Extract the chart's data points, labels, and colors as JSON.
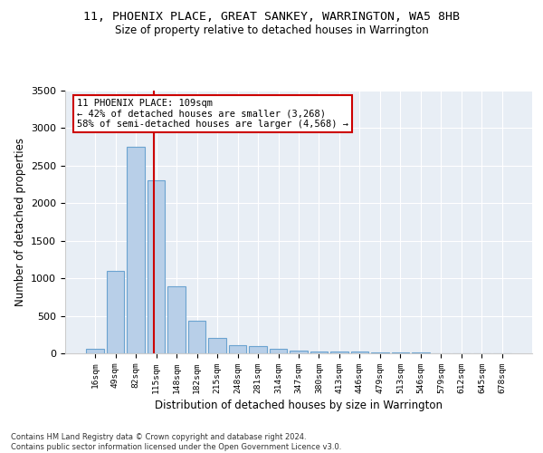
{
  "title": "11, PHOENIX PLACE, GREAT SANKEY, WARRINGTON, WA5 8HB",
  "subtitle": "Size of property relative to detached houses in Warrington",
  "xlabel": "Distribution of detached houses by size in Warrington",
  "ylabel": "Number of detached properties",
  "categories": [
    "16sqm",
    "49sqm",
    "82sqm",
    "115sqm",
    "148sqm",
    "182sqm",
    "215sqm",
    "248sqm",
    "281sqm",
    "314sqm",
    "347sqm",
    "380sqm",
    "413sqm",
    "446sqm",
    "479sqm",
    "513sqm",
    "546sqm",
    "579sqm",
    "612sqm",
    "645sqm",
    "678sqm"
  ],
  "values": [
    55,
    1100,
    2750,
    2300,
    890,
    440,
    210,
    105,
    100,
    60,
    35,
    20,
    25,
    20,
    18,
    12,
    8,
    6,
    4,
    3,
    2
  ],
  "bar_color": "#b8cfe8",
  "bar_edge_color": "#6ba3d0",
  "bg_color": "#e8eef5",
  "property_label": "11 PHOENIX PLACE: 109sqm",
  "annotation_line1": "← 42% of detached houses are smaller (3,268)",
  "annotation_line2": "58% of semi-detached houses are larger (4,568) →",
  "vline_color": "#cc0000",
  "vline_position": 2.9,
  "annotation_box_color": "#ffffff",
  "annotation_box_edge": "#cc0000",
  "ylim": [
    0,
    3500
  ],
  "yticks": [
    0,
    500,
    1000,
    1500,
    2000,
    2500,
    3000,
    3500
  ],
  "footer_line1": "Contains HM Land Registry data © Crown copyright and database right 2024.",
  "footer_line2": "Contains public sector information licensed under the Open Government Licence v3.0."
}
